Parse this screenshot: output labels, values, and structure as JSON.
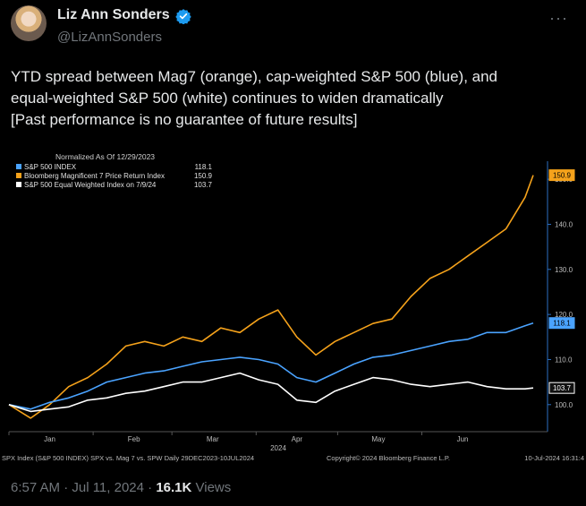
{
  "tweet": {
    "author_name": "Liz Ann Sonders",
    "handle": "@LizAnnSonders",
    "more_icon": "ellipsis-icon",
    "text_lines": [
      "YTD spread between Mag7 (orange), cap-weighted S&P 500 (blue), and",
      "equal-weighted S&P 500 (white) continues to widen dramatically",
      "[Past performance is no guarantee of future results]"
    ],
    "time": "6:57 AM · Jul 11, 2024 · ",
    "views_count": "16.1K",
    "views_label": " Views"
  },
  "colors": {
    "orange": "#f5a21b",
    "blue": "#4aa3ff",
    "white": "#ffffff",
    "background": "#000000"
  },
  "chart_data": {
    "type": "line",
    "legend_title": "Normalized As Of 12/29/2023",
    "legend_entries": [
      {
        "name": "S&P 500 INDEX",
        "value": "118.1",
        "color": "#4aa3ff"
      },
      {
        "name": "Bloomberg Magnificent 7 Price Return Index",
        "value": "150.9",
        "color": "#f5a21b"
      },
      {
        "name": "S&P 500 Equal Weighted Index  on 7/9/24",
        "value": "103.7",
        "color": "#ffffff"
      }
    ],
    "x_tick_labels": [
      "Jan",
      "Feb",
      "Mar",
      "Apr",
      "May",
      "Jun"
    ],
    "x_year_label": "2024",
    "y_tick_labels": [
      "100.0",
      "110.0",
      "120.0",
      "130.0",
      "140.0",
      "150.0"
    ],
    "ylim": [
      94,
      154
    ],
    "footer_left": "SPX Index (S&P 500 INDEX) SPX vs. Mag 7 vs. SPW  Daily 29DEC2023-10JUL2024",
    "footer_mid": "Copyright© 2024 Bloomberg Finance L.P.",
    "footer_right": "10-Jul-2024 16:31:4",
    "x_days": [
      0,
      8,
      15,
      22,
      29,
      36,
      43,
      50,
      57,
      64,
      71,
      78,
      85,
      92,
      99,
      106,
      113,
      120,
      127,
      134,
      141,
      148,
      155,
      162,
      169,
      176,
      183,
      190,
      193
    ],
    "series": [
      {
        "name": "Bloomberg Magnificent 7 Price Return Index",
        "color": "#f5a21b",
        "last_label": "150.9",
        "values": [
          100,
          97,
          100,
          104,
          106,
          109,
          113,
          114,
          113,
          115,
          114,
          117,
          116,
          119,
          121,
          115,
          111,
          114,
          116,
          118,
          119,
          124,
          128,
          130,
          133,
          136,
          139,
          146,
          150.9
        ]
      },
      {
        "name": "S&P 500 INDEX",
        "color": "#4aa3ff",
        "last_label": "118.1",
        "values": [
          100,
          99,
          100.5,
          101.5,
          103,
          105,
          106,
          107,
          107.5,
          108.5,
          109.5,
          110,
          110.5,
          110,
          109,
          106,
          105,
          107,
          109,
          110.5,
          111,
          112,
          113,
          114,
          114.5,
          116,
          116,
          117.5,
          118.1
        ]
      },
      {
        "name": "S&P 500 Equal Weighted Index",
        "color": "#ffffff",
        "last_label": "103.7",
        "values": [
          100,
          98.5,
          99,
          99.5,
          101,
          101.5,
          102.5,
          103,
          104,
          105,
          105,
          106,
          107,
          105.5,
          104.5,
          101,
          100.5,
          103,
          104.5,
          106,
          105.5,
          104.5,
          104,
          104.5,
          105,
          104,
          103.5,
          103.5,
          103.7
        ]
      }
    ]
  }
}
